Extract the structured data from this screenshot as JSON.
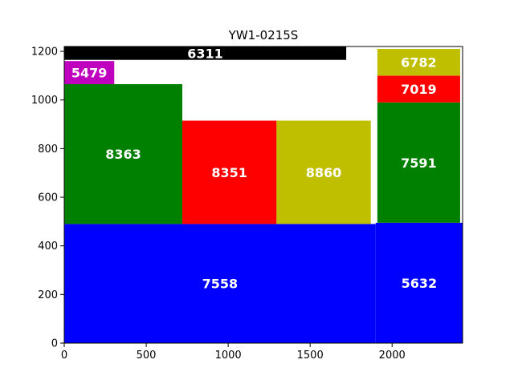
{
  "chart_data": {
    "type": "rectangles",
    "title": "YW1-0215S",
    "xlabel": "",
    "ylabel": "",
    "xlim": [
      0,
      2430
    ],
    "ylim": [
      0,
      1220
    ],
    "xticks": [
      0,
      500,
      1000,
      1500,
      2000
    ],
    "yticks": [
      0,
      200,
      400,
      600,
      800,
      1000,
      1200
    ],
    "grid": false,
    "rects": [
      {
        "label": "7558",
        "x": 0,
        "y": 0,
        "w": 1900,
        "h": 490,
        "color": "#0000ff"
      },
      {
        "label": "5632",
        "x": 1900,
        "y": 0,
        "w": 530,
        "h": 495,
        "color": "#0000ff"
      },
      {
        "label": "8363",
        "x": 0,
        "y": 490,
        "w": 720,
        "h": 575,
        "color": "#008000"
      },
      {
        "label": "8351",
        "x": 720,
        "y": 490,
        "w": 575,
        "h": 425,
        "color": "#ff0000"
      },
      {
        "label": "8860",
        "x": 1295,
        "y": 490,
        "w": 575,
        "h": 425,
        "color": "#bfbf00"
      },
      {
        "label": "5479",
        "x": 0,
        "y": 1065,
        "w": 305,
        "h": 95,
        "color": "#bf00bf"
      },
      {
        "label": "6311",
        "x": 0,
        "y": 1165,
        "w": 1720,
        "h": 55,
        "color": "#000000"
      },
      {
        "label": "7591",
        "x": 1910,
        "y": 495,
        "w": 505,
        "h": 495,
        "color": "#008000"
      },
      {
        "label": "7019",
        "x": 1910,
        "y": 990,
        "w": 505,
        "h": 110,
        "color": "#ff0000"
      },
      {
        "label": "6782",
        "x": 1910,
        "y": 1100,
        "w": 505,
        "h": 110,
        "color": "#bfbf00"
      }
    ]
  }
}
